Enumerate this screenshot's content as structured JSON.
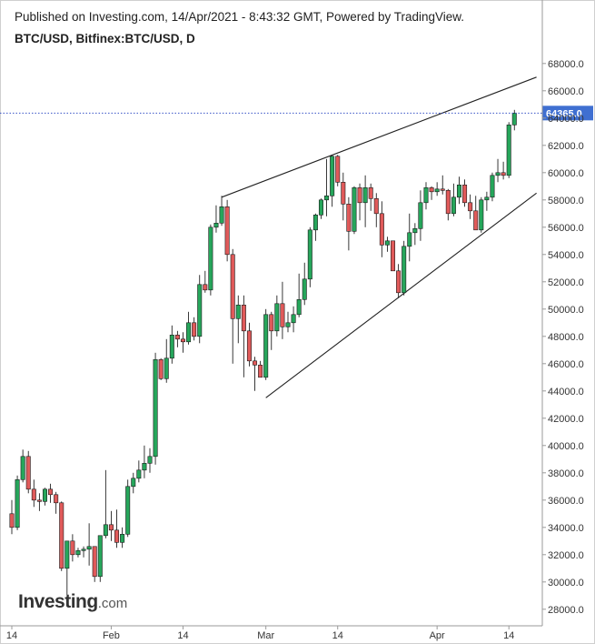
{
  "header": {
    "published": "Published on Investing.com, 14/Apr/2021 - 8:43:32 GMT, Powered by TradingView.",
    "symbol": "BTC/USD, Bitfinex:BTC/USD, D"
  },
  "logo": {
    "brand": "Investing",
    "suffix": ".com"
  },
  "colors": {
    "up": "#26a65b",
    "down": "#e05a5a",
    "price_line": "#3b55c7",
    "price_badge": "#3f6fd1",
    "trendline": "#222222"
  },
  "chart_data": {
    "type": "candlestick",
    "ylim": [
      27000,
      69000
    ],
    "y_ticks": [
      "28000.0",
      "30000.0",
      "32000.0",
      "34000.0",
      "36000.0",
      "38000.0",
      "40000.0",
      "42000.0",
      "44000.0",
      "46000.0",
      "48000.0",
      "50000.0",
      "52000.0",
      "54000.0",
      "56000.0",
      "58000.0",
      "60000.0",
      "62000.0",
      "64000.0",
      "66000.0",
      "68000.0"
    ],
    "x_ticks": [
      {
        "label": "14",
        "index": 0
      },
      {
        "label": "Feb",
        "index": 18
      },
      {
        "label": "14",
        "index": 31
      },
      {
        "label": "Mar",
        "index": 46
      },
      {
        "label": "14",
        "index": 59
      },
      {
        "label": "Apr",
        "index": 77
      },
      {
        "label": "14",
        "index": 90
      }
    ],
    "last_price": 64365.0,
    "last_price_label": "64365.0",
    "trendlines": [
      {
        "from": [
          38,
          58200
        ],
        "to": [
          95,
          67000
        ]
      },
      {
        "from": [
          46,
          43500
        ],
        "to": [
          95,
          58500
        ]
      }
    ],
    "candles": [
      [
        35000,
        36000,
        33500,
        34000
      ],
      [
        34000,
        37800,
        33800,
        37500
      ],
      [
        37500,
        39700,
        37300,
        39200
      ],
      [
        39200,
        39600,
        36500,
        36800
      ],
      [
        36800,
        37500,
        35500,
        36000
      ],
      [
        36000,
        36500,
        35200,
        35900
      ],
      [
        35900,
        36900,
        35600,
        36800
      ],
      [
        36800,
        37200,
        35800,
        36400
      ],
      [
        36400,
        36600,
        35000,
        35800
      ],
      [
        35800,
        35900,
        30800,
        31000
      ],
      [
        31000,
        33000,
        29000,
        33000
      ],
      [
        33000,
        33500,
        31500,
        32000
      ],
      [
        32000,
        32500,
        31800,
        32300
      ],
      [
        32300,
        32600,
        31800,
        32400
      ],
      [
        32400,
        34300,
        31200,
        32600
      ],
      [
        32600,
        32600,
        30000,
        30400
      ],
      [
        30400,
        33400,
        30000,
        33400
      ],
      [
        33400,
        38200,
        33200,
        34200
      ],
      [
        34200,
        35200,
        33000,
        33800
      ],
      [
        33800,
        35300,
        32500,
        32900
      ],
      [
        32900,
        34000,
        32500,
        33500
      ],
      [
        33500,
        37500,
        33300,
        37000
      ],
      [
        37000,
        38000,
        36500,
        37600
      ],
      [
        37600,
        38900,
        37300,
        38200
      ],
      [
        38200,
        40000,
        37600,
        38700
      ],
      [
        38700,
        39800,
        38000,
        39200
      ],
      [
        39200,
        46800,
        38600,
        46300
      ],
      [
        46300,
        46400,
        44800,
        44900
      ],
      [
        44900,
        47800,
        44600,
        46400
      ],
      [
        46400,
        48800,
        46000,
        48100
      ],
      [
        48100,
        48400,
        47200,
        47800
      ],
      [
        47800,
        48300,
        46800,
        47600
      ],
      [
        47600,
        49800,
        47400,
        49000
      ],
      [
        49000,
        49400,
        47700,
        48000
      ],
      [
        48000,
        52500,
        47500,
        51800
      ],
      [
        51800,
        52800,
        51200,
        51400
      ],
      [
        51400,
        56200,
        51000,
        56000
      ],
      [
        56000,
        57600,
        55600,
        56300
      ],
      [
        56300,
        58300,
        56100,
        57500
      ],
      [
        57500,
        58000,
        53500,
        54000
      ],
      [
        54000,
        54400,
        46000,
        49300
      ],
      [
        49300,
        51000,
        47500,
        50300
      ],
      [
        50300,
        51000,
        45000,
        48400
      ],
      [
        48400,
        49000,
        45800,
        46200
      ],
      [
        46200,
        46500,
        44000,
        45900
      ],
      [
        45900,
        46200,
        45000,
        45000
      ],
      [
        45000,
        50000,
        44800,
        49600
      ],
      [
        49600,
        49800,
        47000,
        48400
      ],
      [
        48400,
        51000,
        48000,
        50400
      ],
      [
        50400,
        52000,
        47800,
        48700
      ],
      [
        48700,
        49800,
        48300,
        49000
      ],
      [
        49000,
        50200,
        48300,
        49600
      ],
      [
        49600,
        52600,
        49400,
        50700
      ],
      [
        50700,
        53400,
        50300,
        52200
      ],
      [
        52200,
        56000,
        51600,
        55800
      ],
      [
        55800,
        57000,
        55000,
        56900
      ],
      [
        56900,
        58100,
        56600,
        58000
      ],
      [
        58000,
        61000,
        56800,
        58300
      ],
      [
        58300,
        61300,
        57500,
        61200
      ],
      [
        61200,
        61300,
        59000,
        59300
      ],
      [
        59300,
        60000,
        56500,
        57700
      ],
      [
        57700,
        58200,
        54300,
        55700
      ],
      [
        55700,
        59000,
        55500,
        58900
      ],
      [
        58900,
        59200,
        56500,
        57800
      ],
      [
        57800,
        59800,
        56000,
        58900
      ],
      [
        58900,
        59200,
        57200,
        58100
      ],
      [
        58100,
        58500,
        56000,
        57000
      ],
      [
        57000,
        57900,
        53800,
        54700
      ],
      [
        54700,
        55300,
        54200,
        55000
      ],
      [
        55000,
        55000,
        52900,
        52800
      ],
      [
        52800,
        53300,
        50800,
        51200
      ],
      [
        51200,
        55000,
        51000,
        54600
      ],
      [
        54600,
        57000,
        53500,
        55600
      ],
      [
        55600,
        56300,
        54700,
        55900
      ],
      [
        55900,
        58700,
        55000,
        57800
      ],
      [
        57800,
        59300,
        57300,
        58900
      ],
      [
        58900,
        59000,
        58000,
        58600
      ],
      [
        58600,
        59300,
        58300,
        58800
      ],
      [
        58800,
        59800,
        58400,
        58700
      ],
      [
        58700,
        58800,
        56500,
        57000
      ],
      [
        57000,
        59200,
        56800,
        58200
      ],
      [
        58200,
        59700,
        57700,
        59100
      ],
      [
        59100,
        59500,
        57500,
        57800
      ],
      [
        57800,
        58400,
        56600,
        57200
      ],
      [
        57200,
        58300,
        55800,
        55800
      ],
      [
        55800,
        58200,
        55600,
        58000
      ],
      [
        58000,
        58600,
        57200,
        58200
      ],
      [
        58200,
        60000,
        57900,
        59800
      ],
      [
        59800,
        61000,
        59300,
        60000
      ],
      [
        60000,
        60800,
        59500,
        59800
      ],
      [
        59800,
        63700,
        59600,
        63500
      ],
      [
        63500,
        64600,
        63100,
        64365
      ]
    ]
  }
}
